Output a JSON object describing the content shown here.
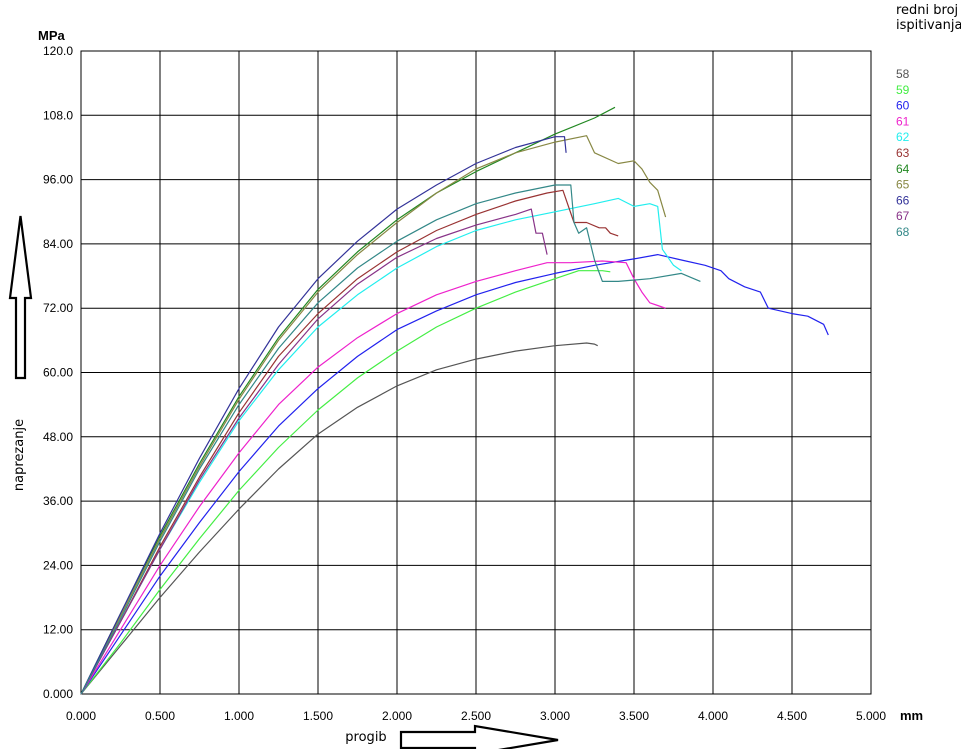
{
  "chart_data": {
    "type": "line",
    "title": "",
    "xlabel": "progib",
    "ylabel": "naprezanje",
    "x_unit": "mm",
    "y_unit": "MPa",
    "xlim": [
      0,
      5
    ],
    "ylim": [
      0,
      120
    ],
    "x_ticks": [
      "0.000",
      "0.500",
      "1.000",
      "1.500",
      "2.000",
      "2.500",
      "3.000",
      "3.500",
      "4.000",
      "4.500",
      "5.000"
    ],
    "y_ticks": [
      "0.000",
      "12.00",
      "24.00",
      "36.00",
      "48.00",
      "60.00",
      "72.00",
      "84.00",
      "96.00",
      "108.0",
      "120.0"
    ],
    "grid": true,
    "legend_title": "redni broj ispitivanja",
    "legend_title_lines": [
      "redni broj",
      "ispitivanja"
    ],
    "legend_position": "right",
    "series": [
      {
        "name": "58",
        "color": "#555555",
        "points": [
          [
            0,
            0
          ],
          [
            0.25,
            9
          ],
          [
            0.5,
            18
          ],
          [
            0.75,
            26.5
          ],
          [
            1.0,
            34.5
          ],
          [
            1.25,
            42
          ],
          [
            1.5,
            48.5
          ],
          [
            1.75,
            53.5
          ],
          [
            2.0,
            57.5
          ],
          [
            2.25,
            60.5
          ],
          [
            2.5,
            62.5
          ],
          [
            2.75,
            64
          ],
          [
            3.0,
            65
          ],
          [
            3.2,
            65.5
          ],
          [
            3.25,
            65.3
          ],
          [
            3.27,
            65
          ]
        ]
      },
      {
        "name": "59",
        "color": "#44ee44",
        "points": [
          [
            0,
            0
          ],
          [
            0.25,
            9.5
          ],
          [
            0.5,
            19.5
          ],
          [
            0.75,
            29
          ],
          [
            1.0,
            38
          ],
          [
            1.25,
            46
          ],
          [
            1.5,
            53
          ],
          [
            1.75,
            59
          ],
          [
            2.0,
            64
          ],
          [
            2.25,
            68.5
          ],
          [
            2.5,
            72
          ],
          [
            2.75,
            75
          ],
          [
            3.0,
            77.5
          ],
          [
            3.15,
            79
          ],
          [
            3.3,
            79
          ],
          [
            3.35,
            78.8
          ]
        ]
      },
      {
        "name": "60",
        "color": "#2222ee",
        "points": [
          [
            0,
            0
          ],
          [
            0.25,
            11
          ],
          [
            0.5,
            22
          ],
          [
            0.75,
            32
          ],
          [
            1.0,
            41.5
          ],
          [
            1.25,
            50
          ],
          [
            1.5,
            57
          ],
          [
            1.75,
            63
          ],
          [
            2.0,
            68
          ],
          [
            2.25,
            71.5
          ],
          [
            2.5,
            74.5
          ],
          [
            2.75,
            76.8
          ],
          [
            3.0,
            78.5
          ],
          [
            3.25,
            80
          ],
          [
            3.5,
            81.2
          ],
          [
            3.65,
            82
          ],
          [
            3.8,
            81
          ],
          [
            3.95,
            80
          ],
          [
            4.05,
            79
          ],
          [
            4.1,
            77.5
          ],
          [
            4.2,
            76
          ],
          [
            4.3,
            75
          ],
          [
            4.35,
            72
          ],
          [
            4.5,
            71
          ],
          [
            4.6,
            70.5
          ],
          [
            4.7,
            69
          ],
          [
            4.73,
            67
          ]
        ]
      },
      {
        "name": "61",
        "color": "#ee22cc",
        "points": [
          [
            0,
            0
          ],
          [
            0.25,
            12
          ],
          [
            0.5,
            24
          ],
          [
            0.75,
            35
          ],
          [
            1.0,
            45
          ],
          [
            1.25,
            54
          ],
          [
            1.5,
            61
          ],
          [
            1.75,
            66.5
          ],
          [
            2.0,
            71
          ],
          [
            2.25,
            74.5
          ],
          [
            2.5,
            77
          ],
          [
            2.75,
            79
          ],
          [
            2.95,
            80.5
          ],
          [
            3.1,
            80.5
          ],
          [
            3.3,
            80.8
          ],
          [
            3.45,
            80.5
          ],
          [
            3.5,
            77.5
          ],
          [
            3.55,
            75
          ],
          [
            3.6,
            73
          ],
          [
            3.65,
            72.5
          ],
          [
            3.7,
            72
          ]
        ]
      },
      {
        "name": "62",
        "color": "#22eeee",
        "points": [
          [
            0,
            0
          ],
          [
            0.25,
            13.5
          ],
          [
            0.5,
            27
          ],
          [
            0.75,
            39.5
          ],
          [
            1.0,
            51
          ],
          [
            1.25,
            60.5
          ],
          [
            1.5,
            68.5
          ],
          [
            1.75,
            74.5
          ],
          [
            2.0,
            79.5
          ],
          [
            2.25,
            83.5
          ],
          [
            2.5,
            86.5
          ],
          [
            2.75,
            88.5
          ],
          [
            3.0,
            90
          ],
          [
            3.25,
            91.5
          ],
          [
            3.4,
            92.5
          ],
          [
            3.5,
            91
          ],
          [
            3.6,
            91.5
          ],
          [
            3.65,
            91
          ],
          [
            3.68,
            83
          ],
          [
            3.75,
            80
          ],
          [
            3.8,
            79
          ]
        ]
      },
      {
        "name": "63",
        "color": "#993333",
        "points": [
          [
            0,
            0
          ],
          [
            0.25,
            13.5
          ],
          [
            0.5,
            27.5
          ],
          [
            0.75,
            40.5
          ],
          [
            1.0,
            52.5
          ],
          [
            1.25,
            63
          ],
          [
            1.5,
            71
          ],
          [
            1.75,
            77.5
          ],
          [
            2.0,
            82.5
          ],
          [
            2.25,
            86.5
          ],
          [
            2.5,
            89.5
          ],
          [
            2.75,
            92
          ],
          [
            2.95,
            93.5
          ],
          [
            3.05,
            94
          ],
          [
            3.12,
            88
          ],
          [
            3.2,
            88
          ],
          [
            3.28,
            87
          ],
          [
            3.32,
            87
          ],
          [
            3.35,
            86
          ],
          [
            3.4,
            85.5
          ]
        ]
      },
      {
        "name": "64",
        "color": "#228822",
        "points": [
          [
            0,
            0
          ],
          [
            0.25,
            15
          ],
          [
            0.5,
            29.5
          ],
          [
            0.75,
            43
          ],
          [
            1.0,
            55.5
          ],
          [
            1.25,
            66.5
          ],
          [
            1.5,
            75.5
          ],
          [
            1.75,
            82.5
          ],
          [
            2.0,
            88.5
          ],
          [
            2.25,
            93.5
          ],
          [
            2.5,
            97.5
          ],
          [
            2.75,
            101
          ],
          [
            3.0,
            104.5
          ],
          [
            3.25,
            107.5
          ],
          [
            3.38,
            109.5
          ]
        ]
      },
      {
        "name": "65",
        "color": "#888844",
        "points": [
          [
            0,
            0
          ],
          [
            0.25,
            14.5
          ],
          [
            0.5,
            29
          ],
          [
            0.75,
            42.5
          ],
          [
            1.0,
            55
          ],
          [
            1.25,
            66
          ],
          [
            1.5,
            75
          ],
          [
            1.75,
            82
          ],
          [
            2.0,
            88
          ],
          [
            2.25,
            93.5
          ],
          [
            2.5,
            98
          ],
          [
            2.75,
            101
          ],
          [
            3.0,
            103
          ],
          [
            3.2,
            104.2
          ],
          [
            3.25,
            101
          ],
          [
            3.4,
            99
          ],
          [
            3.5,
            99.5
          ],
          [
            3.55,
            98
          ],
          [
            3.6,
            95.5
          ],
          [
            3.65,
            94
          ],
          [
            3.7,
            89
          ]
        ]
      },
      {
        "name": "66",
        "color": "#333399",
        "points": [
          [
            0,
            0
          ],
          [
            0.25,
            15
          ],
          [
            0.5,
            30
          ],
          [
            0.75,
            44
          ],
          [
            1.0,
            57
          ],
          [
            1.25,
            68.5
          ],
          [
            1.5,
            77.5
          ],
          [
            1.75,
            84.5
          ],
          [
            2.0,
            90.5
          ],
          [
            2.25,
            95
          ],
          [
            2.5,
            99
          ],
          [
            2.75,
            102
          ],
          [
            3.0,
            104
          ],
          [
            3.06,
            104
          ],
          [
            3.07,
            101
          ]
        ]
      },
      {
        "name": "67",
        "color": "#883388",
        "points": [
          [
            0,
            0
          ],
          [
            0.25,
            13.5
          ],
          [
            0.5,
            27
          ],
          [
            0.75,
            40
          ],
          [
            1.0,
            51.5
          ],
          [
            1.25,
            61.5
          ],
          [
            1.5,
            70
          ],
          [
            1.75,
            76.5
          ],
          [
            2.0,
            81.5
          ],
          [
            2.25,
            85
          ],
          [
            2.5,
            87.5
          ],
          [
            2.75,
            89.5
          ],
          [
            2.85,
            90.5
          ],
          [
            2.88,
            86
          ],
          [
            2.92,
            86
          ],
          [
            2.95,
            82
          ]
        ]
      },
      {
        "name": "68",
        "color": "#338888",
        "points": [
          [
            0,
            0
          ],
          [
            0.25,
            14
          ],
          [
            0.5,
            28.5
          ],
          [
            0.75,
            42
          ],
          [
            1.0,
            54
          ],
          [
            1.25,
            64.5
          ],
          [
            1.5,
            73
          ],
          [
            1.75,
            79.5
          ],
          [
            2.0,
            84.5
          ],
          [
            2.25,
            88.5
          ],
          [
            2.5,
            91.5
          ],
          [
            2.75,
            93.5
          ],
          [
            3.0,
            95
          ],
          [
            3.1,
            95
          ],
          [
            3.12,
            88
          ],
          [
            3.15,
            86
          ],
          [
            3.2,
            87
          ],
          [
            3.25,
            81
          ],
          [
            3.3,
            77
          ],
          [
            3.4,
            77
          ],
          [
            3.6,
            77.5
          ],
          [
            3.8,
            78.5
          ],
          [
            3.92,
            77
          ]
        ]
      }
    ]
  }
}
